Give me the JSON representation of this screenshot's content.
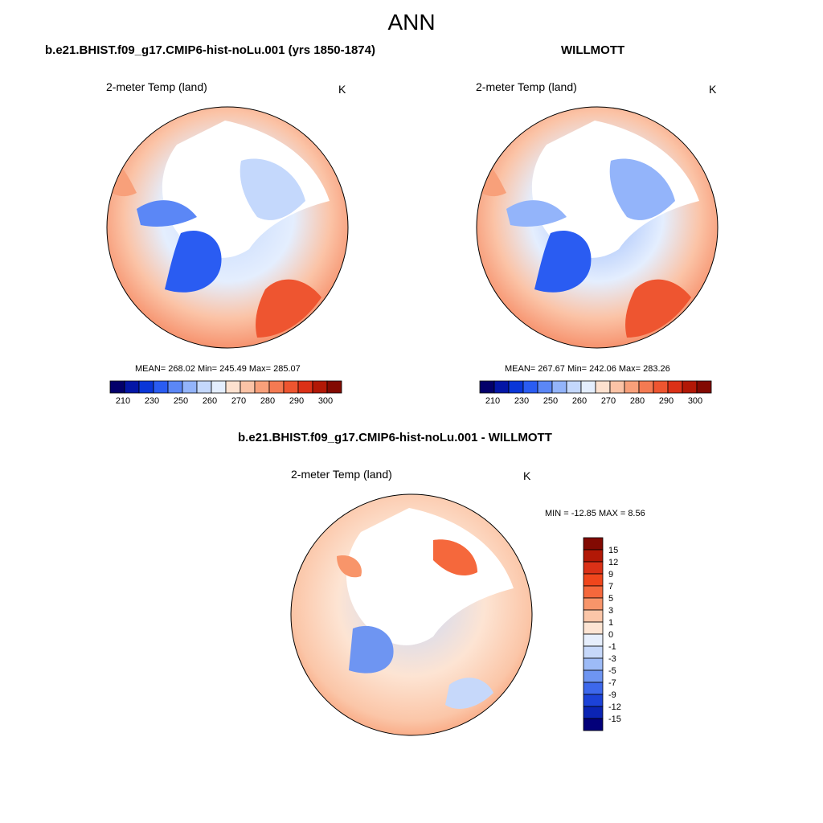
{
  "title": "ANN",
  "panels": [
    {
      "title": "b.e21.BHIST.f09_g17.CMIP6-hist-noLu.001 (yrs 1850-1874)",
      "variable": "2-meter Temp (land)",
      "units": "K",
      "stats": "MEAN= 268.02  Min= 245.49  Max= 285.07"
    },
    {
      "title": "WILLMOTT",
      "variable": "2-meter Temp (land)",
      "units": "K",
      "stats": "MEAN= 267.67  Min= 242.06  Max= 283.26"
    },
    {
      "title": "b.e21.BHIST.f09_g17.CMIP6-hist-noLu.001 - WILLMOTT",
      "variable": "2-meter Temp (land)",
      "units": "K",
      "stats": "MIN = -12.85 MAX =   8.56"
    }
  ],
  "colorbar_abs": {
    "ticks": [
      "210",
      "230",
      "250",
      "260",
      "270",
      "280",
      "290",
      "300"
    ],
    "colors": [
      "#03006a",
      "#0416a6",
      "#0a36d8",
      "#2a5cf2",
      "#5b87f6",
      "#93b4fa",
      "#c4d8fc",
      "#e4eefe",
      "#fde1cf",
      "#fbc3a6",
      "#f8a07a",
      "#f47a52",
      "#ee5530",
      "#db3117",
      "#b21806",
      "#820a02"
    ]
  },
  "colorbar_diff": {
    "ticks": [
      "15",
      "12",
      "9",
      "7",
      "5",
      "3",
      "1",
      "0",
      "-1",
      "-3",
      "-5",
      "-7",
      "-9",
      "-12",
      "-15"
    ],
    "colors": [
      "#820a02",
      "#b21806",
      "#db3117",
      "#f0461c",
      "#f5683c",
      "#f8956a",
      "#fbc6a8",
      "#fde4d3",
      "#e6eefc",
      "#c6d8fa",
      "#9dbbf7",
      "#6e95f2",
      "#3d68ec",
      "#1c42d8",
      "#0b24b4",
      "#03007a"
    ]
  }
}
